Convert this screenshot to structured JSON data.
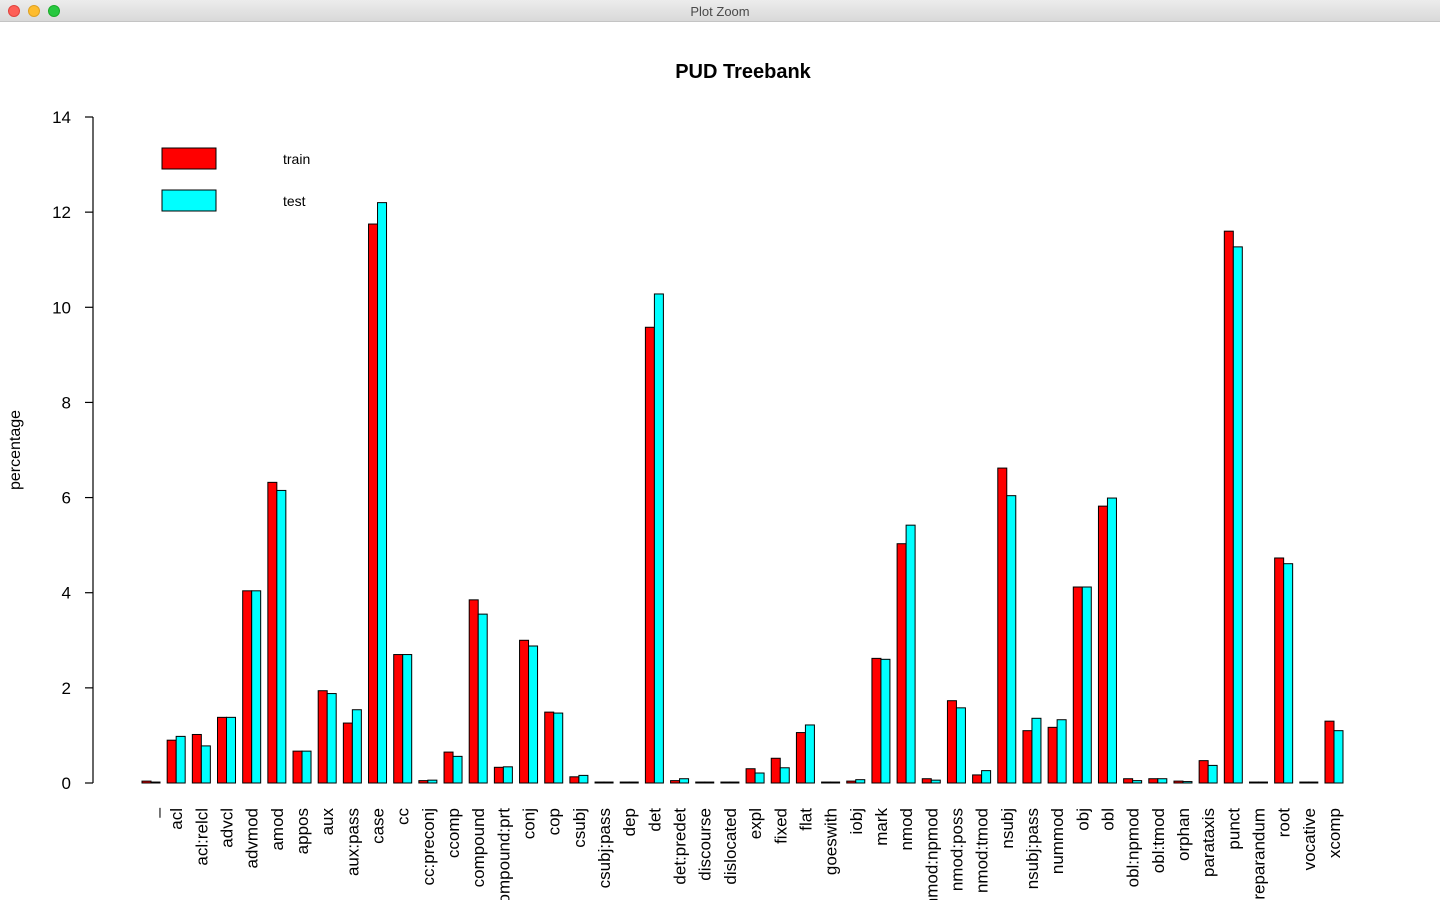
{
  "window": {
    "title": "Plot Zoom",
    "buttons": {
      "close_color": "#fe5f57",
      "minimize_color": "#febc2e",
      "maximize_color": "#28c840"
    }
  },
  "chart_data": {
    "type": "bar",
    "title": "PUD Treebank",
    "xlabel": "",
    "ylabel": "percentage",
    "ylim": [
      0,
      14
    ],
    "yticks": [
      0,
      2,
      4,
      6,
      8,
      10,
      12,
      14
    ],
    "grid": false,
    "legend": "top-left",
    "categories": [
      "_",
      "acl",
      "acl:relcl",
      "advcl",
      "advmod",
      "amod",
      "appos",
      "aux",
      "aux:pass",
      "case",
      "cc",
      "cc:preconj",
      "ccomp",
      "compound",
      "compound:prt",
      "conj",
      "cop",
      "csubj",
      "csubj:pass",
      "dep",
      "det",
      "det:predet",
      "discourse",
      "dislocated",
      "expl",
      "fixed",
      "flat",
      "goeswith",
      "iobj",
      "mark",
      "nmod",
      "nmod:npmod",
      "nmod:poss",
      "nmod:tmod",
      "nsubj",
      "nsubj:pass",
      "nummod",
      "obj",
      "obl",
      "obl:npmod",
      "obl:tmod",
      "orphan",
      "parataxis",
      "punct",
      "reparandum",
      "root",
      "vocative",
      "xcomp"
    ],
    "series": [
      {
        "name": "train",
        "color": "#ff0000",
        "values": [
          0.04,
          0.9,
          1.02,
          1.38,
          4.04,
          6.32,
          0.67,
          1.94,
          1.26,
          11.75,
          2.7,
          0.05,
          0.65,
          3.85,
          0.33,
          3.0,
          1.49,
          0.13,
          0.02,
          0.02,
          9.58,
          0.05,
          0.02,
          0.02,
          0.3,
          0.52,
          1.06,
          0.02,
          0.04,
          2.62,
          5.03,
          0.09,
          1.73,
          0.17,
          6.62,
          1.1,
          1.17,
          4.12,
          5.82,
          0.09,
          0.09,
          0.04,
          0.47,
          11.6,
          0.02,
          4.73,
          0.02,
          1.3
        ]
      },
      {
        "name": "test",
        "color": "#00ffff",
        "values": [
          0.02,
          0.98,
          0.78,
          1.38,
          4.04,
          6.15,
          0.67,
          1.88,
          1.54,
          12.2,
          2.7,
          0.06,
          0.56,
          3.55,
          0.34,
          2.88,
          1.47,
          0.16,
          0.02,
          0.02,
          10.28,
          0.09,
          0.02,
          0.02,
          0.21,
          0.32,
          1.22,
          0.02,
          0.07,
          2.6,
          5.42,
          0.06,
          1.58,
          0.26,
          6.04,
          1.36,
          1.33,
          4.12,
          5.99,
          0.05,
          0.09,
          0.03,
          0.37,
          11.27,
          0.02,
          4.61,
          0.02,
          1.1
        ]
      }
    ]
  }
}
